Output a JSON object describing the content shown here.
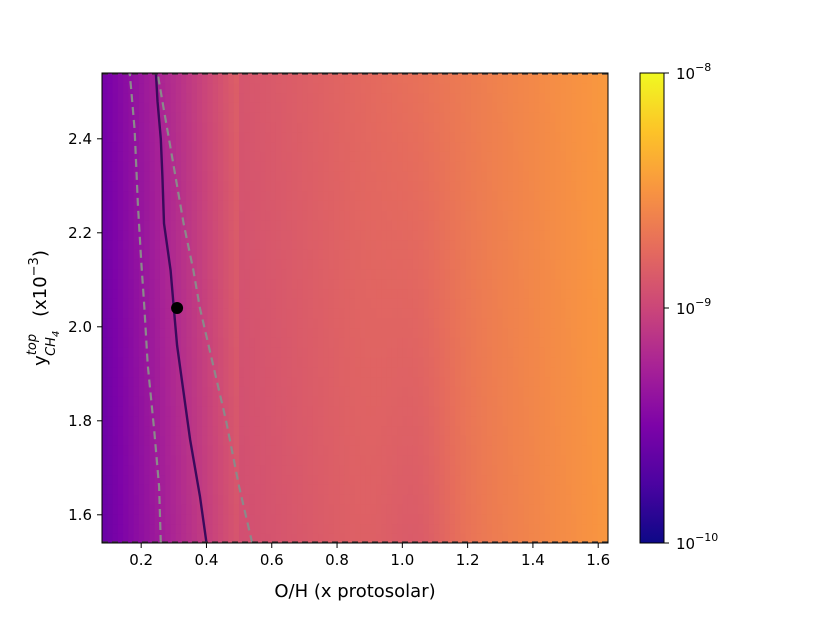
{
  "chart_data": {
    "type": "heatmap",
    "title": "",
    "xlabel": "O/H (x protosolar)",
    "ylabel_main": "y",
    "ylabel_sup": "top",
    "ylabel_sub": "CH",
    "ylabel_sub_sub": "4",
    "ylabel_suffix_prefix": "(x10",
    "ylabel_suffix_exp": "−3",
    "ylabel_suffix_end": ")",
    "xlim": [
      0.08,
      1.63
    ],
    "ylim": [
      1.54,
      2.54
    ],
    "xticks": [
      0.2,
      0.4,
      0.6,
      0.8,
      1.0,
      1.2,
      1.4,
      1.6
    ],
    "xtick_labels": [
      "0.2",
      "0.4",
      "0.6",
      "0.8",
      "1.0",
      "1.2",
      "1.4",
      "1.6"
    ],
    "yticks": [
      1.6,
      1.8,
      2.0,
      2.2,
      2.4
    ],
    "ytick_labels": [
      "1.6",
      "1.8",
      "2.0",
      "2.2",
      "2.4"
    ],
    "colorbar": {
      "scale": "log",
      "range": [
        1e-10,
        1e-08
      ],
      "colormap": "plasma",
      "ticks": [
        {
          "base": "10",
          "exp": "−8",
          "value": 1e-08
        },
        {
          "base": "10",
          "exp": "−9",
          "value": 1e-09
        },
        {
          "base": "10",
          "exp": "−10",
          "value": 1e-10
        }
      ]
    },
    "best_fit_point": {
      "x": 0.31,
      "y": 2.04
    },
    "contour_best": {
      "x": [
        0.4,
        0.38,
        0.35,
        0.33,
        0.31,
        0.3,
        0.29,
        0.27,
        0.265,
        0.26,
        0.25,
        0.245
      ],
      "y": [
        1.54,
        1.64,
        1.76,
        1.86,
        1.96,
        2.04,
        2.12,
        2.22,
        2.32,
        2.4,
        2.48,
        2.54
      ]
    },
    "contour_lower": {
      "x": [
        0.26,
        0.255,
        0.24,
        0.22,
        0.21,
        0.2,
        0.19,
        0.185,
        0.18,
        0.17,
        0.165
      ],
      "y": [
        1.54,
        1.66,
        1.78,
        1.92,
        2.04,
        2.14,
        2.26,
        2.34,
        2.42,
        2.5,
        2.54
      ]
    },
    "contour_upper": {
      "x": [
        0.54,
        0.5,
        0.46,
        0.42,
        0.38,
        0.36,
        0.33,
        0.31,
        0.29,
        0.27,
        0.26,
        0.25
      ],
      "y": [
        1.54,
        1.66,
        1.8,
        1.92,
        2.04,
        2.12,
        2.22,
        2.3,
        2.38,
        2.46,
        2.5,
        2.54
      ]
    }
  }
}
